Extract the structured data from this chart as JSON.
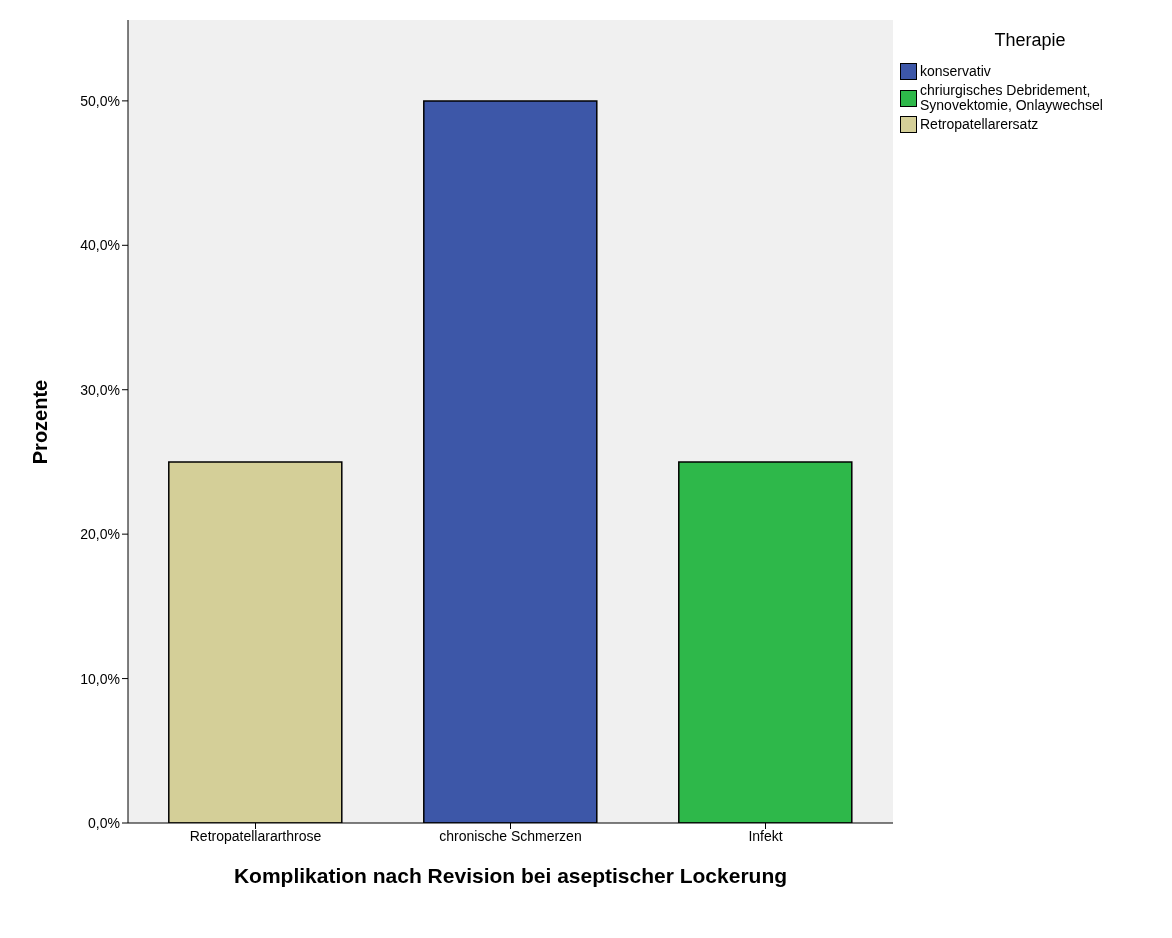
{
  "chart_data": {
    "type": "bar",
    "xlabel": "Komplikation nach Revision bei aseptischer Lockerung",
    "ylabel": "Prozente",
    "legend_title": "Therapie",
    "legend": "top right",
    "stacked": true,
    "categories": [
      "Retropatellararthrose",
      "chronische Schmerzen",
      "Infekt"
    ],
    "series": [
      {
        "name": "konservativ",
        "color": "#3d57a8",
        "values": [
          null,
          50,
          null
        ]
      },
      {
        "name": "chriurgisches Debridement, Synovektomie, Onlaywechsel",
        "color": "#2eb84a",
        "values": [
          null,
          null,
          25
        ]
      },
      {
        "name": "Retropatellarersatz",
        "color": "#d4cf98",
        "values": [
          25,
          null,
          null
        ]
      }
    ],
    "ylim": [
      0,
      55.6
    ],
    "yticks": [
      {
        "value": 0,
        "label": "0,0%"
      },
      {
        "value": 10,
        "label": "10,0%"
      },
      {
        "value": 20,
        "label": "20,0%"
      },
      {
        "value": 30,
        "label": "30,0%"
      },
      {
        "value": 40,
        "label": "40,0%"
      },
      {
        "value": 50,
        "label": "50,0%"
      }
    ],
    "grid": false
  }
}
